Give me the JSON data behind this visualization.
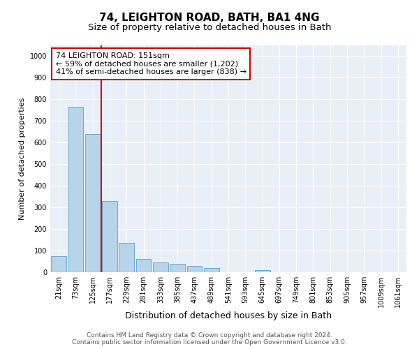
{
  "title1": "74, LEIGHTON ROAD, BATH, BA1 4NG",
  "title2": "Size of property relative to detached houses in Bath",
  "xlabel": "Distribution of detached houses by size in Bath",
  "ylabel": "Number of detached properties",
  "bar_labels": [
    "21sqm",
    "73sqm",
    "125sqm",
    "177sqm",
    "229sqm",
    "281sqm",
    "333sqm",
    "385sqm",
    "437sqm",
    "489sqm",
    "541sqm",
    "593sqm",
    "645sqm",
    "697sqm",
    "749sqm",
    "801sqm",
    "853sqm",
    "905sqm",
    "957sqm",
    "1009sqm",
    "1061sqm"
  ],
  "bar_values": [
    75,
    765,
    640,
    330,
    135,
    60,
    45,
    38,
    30,
    18,
    0,
    0,
    10,
    0,
    0,
    0,
    0,
    0,
    0,
    0,
    0
  ],
  "bar_color": "#b8d4e8",
  "bar_edge_color": "#6aaad4",
  "background_color": "#e8eff7",
  "property_label": "74 LEIGHTON ROAD: 151sqm",
  "annotation_line1": "← 59% of detached houses are smaller (1,202)",
  "annotation_line2": "41% of semi-detached houses are larger (838) →",
  "vline_color": "#cc0000",
  "box_color": "#cc0000",
  "ylim": [
    0,
    1050
  ],
  "yticks": [
    0,
    100,
    200,
    300,
    400,
    500,
    600,
    700,
    800,
    900,
    1000
  ],
  "footer1": "Contains HM Land Registry data © Crown copyright and database right 2024.",
  "footer2": "Contains public sector information licensed under the Open Government Licence v3.0.",
  "title1_fontsize": 11,
  "title2_fontsize": 9.5,
  "xlabel_fontsize": 9,
  "ylabel_fontsize": 8,
  "tick_fontsize": 7,
  "annotation_fontsize": 8,
  "footer_fontsize": 6.5
}
